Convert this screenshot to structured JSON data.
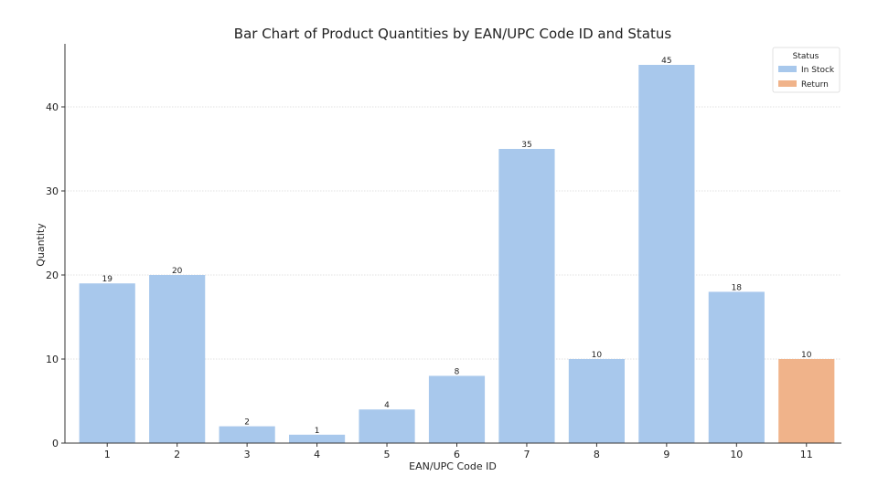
{
  "chart_data": {
    "type": "bar",
    "title": "Bar Chart of Product Quantities by EAN/UPC Code ID and Status",
    "xlabel": "EAN/UPC Code ID",
    "ylabel": "Quantity",
    "categories": [
      "1",
      "2",
      "3",
      "4",
      "5",
      "6",
      "7",
      "8",
      "9",
      "10",
      "11"
    ],
    "values": [
      19,
      20,
      2,
      1,
      4,
      8,
      35,
      10,
      45,
      18,
      10
    ],
    "status": [
      "In Stock",
      "In Stock",
      "In Stock",
      "In Stock",
      "In Stock",
      "In Stock",
      "In Stock",
      "In Stock",
      "In Stock",
      "In Stock",
      "Return"
    ],
    "ylim": [
      0,
      47.5
    ],
    "yticks": [
      0,
      10,
      20,
      30,
      40
    ],
    "grid": true,
    "legend": {
      "title": "Status",
      "placement": "top-right",
      "entries": [
        {
          "label": "In Stock",
          "color": "#a8c8ec"
        },
        {
          "label": "Return",
          "color": "#f0b38a"
        }
      ]
    },
    "colors": {
      "In Stock": "#a8c8ec",
      "Return": "#f0b38a"
    }
  }
}
